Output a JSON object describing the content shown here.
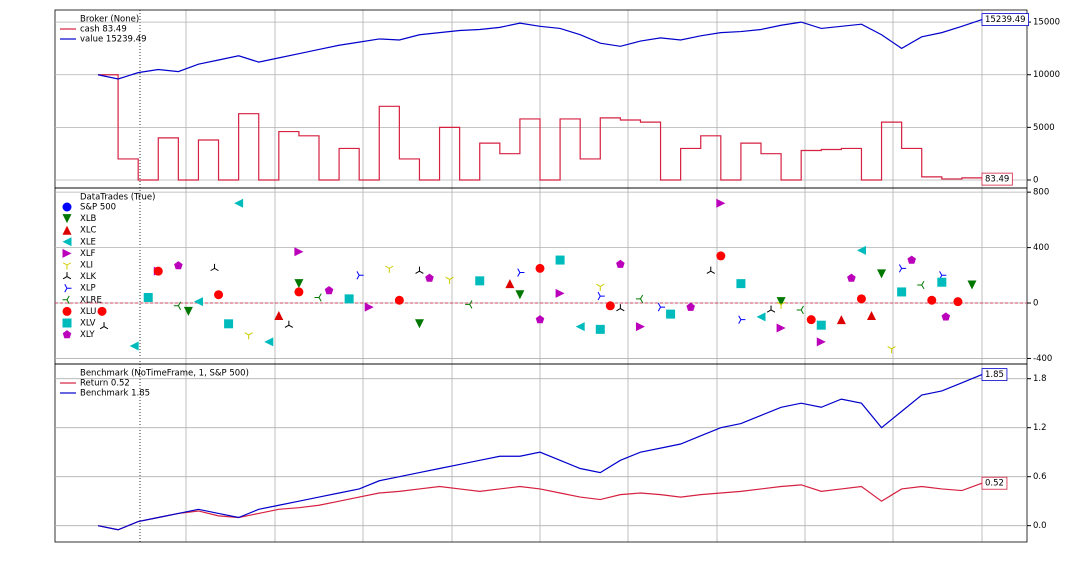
{
  "chart_data": [
    {
      "type": "line",
      "legend_title": "Broker (None)",
      "step": true,
      "grid": true,
      "ylim": [
        -760,
        16150
      ],
      "yticks": [
        0,
        5000,
        10000,
        15000
      ],
      "series": [
        {
          "name": "cash 83.49",
          "color": "#d62040",
          "step": true,
          "values": [
            10000,
            2000,
            0,
            4000,
            0,
            3800,
            0,
            6300,
            0,
            4600,
            4200,
            0,
            3000,
            0,
            7000,
            2000,
            0,
            5000,
            0,
            3500,
            2500,
            5800,
            0,
            5800,
            2000,
            5900,
            5700,
            5500,
            0,
            3000,
            4200,
            0,
            3500,
            2500,
            0,
            2800,
            2900,
            3000,
            0,
            5500,
            3000,
            300,
            100,
            200,
            83.49
          ]
        },
        {
          "name": "value 15239.49",
          "color": "#0000cc",
          "values": [
            10000,
            9600,
            10200,
            10500,
            10300,
            11000,
            11400,
            11800,
            11200,
            11600,
            12000,
            12400,
            12800,
            13100,
            13400,
            13300,
            13800,
            14000,
            14200,
            14300,
            14500,
            14900,
            14600,
            14400,
            13800,
            13000,
            12700,
            13200,
            13500,
            13300,
            13700,
            14000,
            14100,
            14300,
            14700,
            15000,
            14400,
            14600,
            14800,
            13800,
            12500,
            13600,
            14000,
            14600,
            15239.49
          ]
        }
      ]
    },
    {
      "type": "scatter",
      "legend_title": "DataTrades (True)",
      "grid": true,
      "ylim": [
        -440,
        830
      ],
      "yticks": [
        -400,
        0,
        400,
        800
      ],
      "series": [
        {
          "name": "S&P 500",
          "color": "#0000ff",
          "marker": "o",
          "x": [],
          "values": []
        },
        {
          "name": "XLB",
          "color": "#007700",
          "marker": "v",
          "x": [
            4.5,
            10,
            16,
            21,
            34,
            39,
            43.5
          ],
          "values": [
            -60,
            140,
            -150,
            60,
            10,
            210,
            130
          ]
        },
        {
          "name": "XLC",
          "color": "#dd0000",
          "marker": "^",
          "x": [
            9,
            20.5,
            37,
            38.5
          ],
          "values": [
            -90,
            140,
            -120,
            -90
          ]
        },
        {
          "name": "XLE",
          "color": "#00bbbb",
          "marker": "<",
          "x": [
            1.8,
            5,
            7,
            8.5,
            24,
            33,
            38
          ],
          "values": [
            -310,
            10,
            720,
            -280,
            -170,
            -100,
            380
          ]
        },
        {
          "name": "XLF",
          "color": "#bb00bb",
          "marker": ">",
          "x": [
            3,
            10,
            13.5,
            23,
            27,
            31,
            34,
            36
          ],
          "values": [
            230,
            370,
            -30,
            70,
            -170,
            720,
            -180,
            -280
          ]
        },
        {
          "name": "XLI",
          "color": "#cccc00",
          "marker": "1",
          "x": [
            7.5,
            14.5,
            17.5,
            25,
            34,
            39.5
          ],
          "values": [
            -230,
            250,
            170,
            120,
            -10,
            -330
          ]
        },
        {
          "name": "XLK",
          "color": "#000000",
          "marker": "2",
          "x": [
            0.3,
            5.8,
            9.5,
            16,
            26,
            30.5,
            33.5
          ],
          "values": [
            -170,
            250,
            -160,
            230,
            -40,
            230,
            -50
          ]
        },
        {
          "name": "XLP",
          "color": "#0000ff",
          "marker": "3",
          "x": [
            13,
            21,
            25,
            28,
            32,
            40,
            42
          ],
          "values": [
            200,
            220,
            50,
            -30,
            -120,
            250,
            200
          ]
        },
        {
          "name": "XLRE",
          "color": "#007700",
          "marker": "4",
          "x": [
            4,
            11,
            18.5,
            27,
            35,
            41
          ],
          "values": [
            -20,
            40,
            -10,
            30,
            -50,
            130
          ]
        },
        {
          "name": "XLU",
          "color": "#ff0000",
          "marker": "o",
          "x": [
            0.2,
            3,
            6,
            10,
            15,
            22,
            25.5,
            31,
            35.5,
            38,
            41.5,
            42.8
          ],
          "values": [
            -60,
            230,
            60,
            80,
            20,
            250,
            -20,
            340,
            -120,
            30,
            20,
            10
          ]
        },
        {
          "name": "XLV",
          "color": "#00bbbb",
          "marker": "s",
          "x": [
            2.5,
            6.5,
            12.5,
            19,
            23,
            25,
            28.5,
            32,
            36,
            40,
            42
          ],
          "values": [
            40,
            -150,
            30,
            160,
            310,
            -190,
            -80,
            140,
            -160,
            80,
            150
          ]
        },
        {
          "name": "XLY",
          "color": "#bb00bb",
          "marker": "p",
          "x": [
            4,
            11.5,
            16.5,
            22,
            26,
            29.5,
            37.5,
            40.5,
            42.2
          ],
          "values": [
            270,
            90,
            180,
            -120,
            280,
            -30,
            180,
            310,
            -100
          ]
        }
      ]
    },
    {
      "type": "line",
      "legend_title": "Benchmark (NoTimeFrame, 1, S&P 500)",
      "grid": true,
      "ylim": [
        -0.2,
        1.98
      ],
      "yticks": [
        {
          "value": 0,
          "label": "0.0"
        },
        0.6,
        1.2,
        1.8
      ],
      "series": [
        {
          "name": "Return 0.52",
          "color": "#d62040",
          "values": [
            0,
            -0.05,
            0.05,
            0.1,
            0.15,
            0.18,
            0.12,
            0.1,
            0.15,
            0.2,
            0.22,
            0.25,
            0.3,
            0.35,
            0.4,
            0.42,
            0.45,
            0.48,
            0.45,
            0.42,
            0.45,
            0.48,
            0.45,
            0.4,
            0.35,
            0.32,
            0.38,
            0.4,
            0.38,
            0.35,
            0.38,
            0.4,
            0.42,
            0.45,
            0.48,
            0.5,
            0.42,
            0.45,
            0.48,
            0.3,
            0.45,
            0.48,
            0.45,
            0.43,
            0.52
          ]
        },
        {
          "name": "Benchmark 1.85",
          "color": "#0000cc",
          "values": [
            0,
            -0.05,
            0.05,
            0.1,
            0.15,
            0.2,
            0.15,
            0.1,
            0.2,
            0.25,
            0.3,
            0.35,
            0.4,
            0.45,
            0.55,
            0.6,
            0.65,
            0.7,
            0.75,
            0.8,
            0.85,
            0.85,
            0.9,
            0.8,
            0.7,
            0.65,
            0.8,
            0.9,
            0.95,
            1.0,
            1.1,
            1.2,
            1.25,
            1.35,
            1.45,
            1.5,
            1.45,
            1.55,
            1.5,
            1.2,
            1.4,
            1.6,
            1.65,
            1.75,
            1.85
          ]
        }
      ]
    }
  ]
}
